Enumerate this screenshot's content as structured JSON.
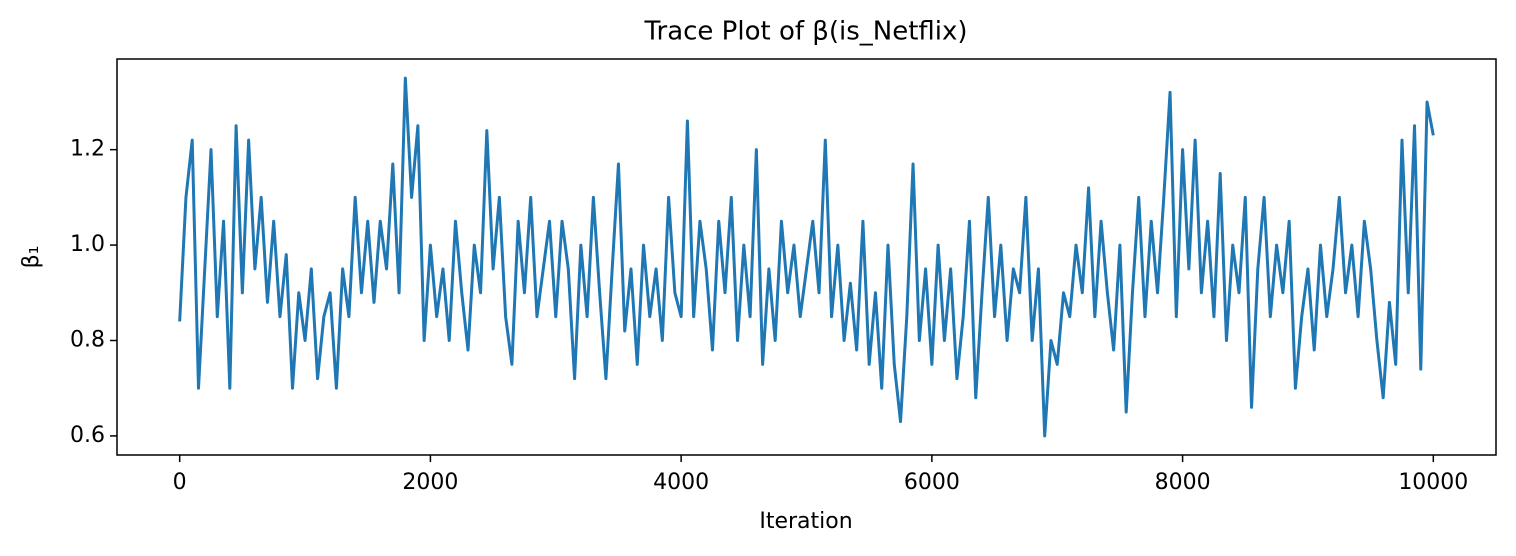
{
  "chart_data": {
    "type": "line",
    "title": "Trace Plot of β(is_Netflix)",
    "x_label": "Iteration",
    "y_label": "β₁",
    "xlim": [
      -500,
      10500
    ],
    "ylim": [
      0.56,
      1.39
    ],
    "xticks": [
      0,
      2000,
      4000,
      6000,
      8000,
      10000
    ],
    "yticks": [
      0.6,
      0.8,
      {
        "value": 1,
        "label": "1.0"
      },
      1.2
    ],
    "grid": false,
    "x": [
      0,
      50,
      100,
      150,
      200,
      250,
      300,
      350,
      400,
      450,
      500,
      550,
      600,
      650,
      700,
      750,
      800,
      850,
      900,
      950,
      1000,
      1050,
      1100,
      1150,
      1200,
      1250,
      1300,
      1350,
      1400,
      1450,
      1500,
      1550,
      1600,
      1650,
      1700,
      1750,
      1800,
      1850,
      1900,
      1950,
      2000,
      2050,
      2100,
      2150,
      2200,
      2250,
      2300,
      2350,
      2400,
      2450,
      2500,
      2550,
      2600,
      2650,
      2700,
      2750,
      2800,
      2850,
      2900,
      2950,
      3000,
      3050,
      3100,
      3150,
      3200,
      3250,
      3300,
      3350,
      3400,
      3450,
      3500,
      3550,
      3600,
      3650,
      3700,
      3750,
      3800,
      3850,
      3900,
      3950,
      4000,
      4050,
      4100,
      4150,
      4200,
      4250,
      4300,
      4350,
      4400,
      4450,
      4500,
      4550,
      4600,
      4650,
      4700,
      4750,
      4800,
      4850,
      4900,
      4950,
      5000,
      5050,
      5100,
      5150,
      5200,
      5250,
      5300,
      5350,
      5400,
      5450,
      5500,
      5550,
      5600,
      5650,
      5700,
      5750,
      5800,
      5850,
      5900,
      5950,
      6000,
      6050,
      6100,
      6150,
      6200,
      6250,
      6300,
      6350,
      6400,
      6450,
      6500,
      6550,
      6600,
      6650,
      6700,
      6750,
      6800,
      6850,
      6900,
      6950,
      7000,
      7050,
      7100,
      7150,
      7200,
      7250,
      7300,
      7350,
      7400,
      7450,
      7500,
      7550,
      7600,
      7650,
      7700,
      7750,
      7800,
      7850,
      7900,
      7950,
      8000,
      8050,
      8100,
      8150,
      8200,
      8250,
      8300,
      8350,
      8400,
      8450,
      8500,
      8550,
      8600,
      8650,
      8700,
      8750,
      8800,
      8850,
      8900,
      8950,
      9000,
      9050,
      9100,
      9150,
      9200,
      9250,
      9300,
      9350,
      9400,
      9450,
      9500,
      9550,
      9600,
      9650,
      9700,
      9750,
      9800,
      9850,
      9900,
      9950,
      10000
    ],
    "series": [
      {
        "color": "#1f77b4",
        "values": [
          0.84,
          1.1,
          1.22,
          0.7,
          0.95,
          1.2,
          0.85,
          1.05,
          0.7,
          1.25,
          0.9,
          1.22,
          0.95,
          1.1,
          0.88,
          1.05,
          0.85,
          0.98,
          0.7,
          0.9,
          0.8,
          0.95,
          0.72,
          0.85,
          0.9,
          0.7,
          0.95,
          0.85,
          1.1,
          0.9,
          1.05,
          0.88,
          1.05,
          0.95,
          1.17,
          0.9,
          1.35,
          1.1,
          1.25,
          0.8,
          1.0,
          0.85,
          0.95,
          0.8,
          1.05,
          0.9,
          0.78,
          1.0,
          0.9,
          1.24,
          0.95,
          1.1,
          0.85,
          0.75,
          1.05,
          0.9,
          1.1,
          0.85,
          0.95,
          1.05,
          0.85,
          1.05,
          0.95,
          0.72,
          1.0,
          0.85,
          1.1,
          0.9,
          0.72,
          0.95,
          1.17,
          0.82,
          0.95,
          0.75,
          1.0,
          0.85,
          0.95,
          0.8,
          1.1,
          0.9,
          0.85,
          1.26,
          0.85,
          1.05,
          0.95,
          0.78,
          1.05,
          0.9,
          1.1,
          0.8,
          1.0,
          0.85,
          1.2,
          0.75,
          0.95,
          0.8,
          1.05,
          0.9,
          1.0,
          0.85,
          0.95,
          1.05,
          0.9,
          1.22,
          0.85,
          1.0,
          0.8,
          0.92,
          0.78,
          1.05,
          0.75,
          0.9,
          0.7,
          1.0,
          0.75,
          0.63,
          0.85,
          1.17,
          0.8,
          0.95,
          0.75,
          1.0,
          0.8,
          0.95,
          0.72,
          0.85,
          1.05,
          0.68,
          0.9,
          1.1,
          0.85,
          1.0,
          0.8,
          0.95,
          0.9,
          1.1,
          0.8,
          0.95,
          0.6,
          0.8,
          0.75,
          0.9,
          0.85,
          1.0,
          0.9,
          1.12,
          0.85,
          1.05,
          0.9,
          0.78,
          1.0,
          0.65,
          0.9,
          1.1,
          0.85,
          1.05,
          0.9,
          1.1,
          1.32,
          0.85,
          1.2,
          0.95,
          1.22,
          0.9,
          1.05,
          0.85,
          1.15,
          0.8,
          1.0,
          0.9,
          1.1,
          0.66,
          0.95,
          1.1,
          0.85,
          1.0,
          0.9,
          1.05,
          0.7,
          0.85,
          0.95,
          0.78,
          1.0,
          0.85,
          0.95,
          1.1,
          0.9,
          1.0,
          0.85,
          1.05,
          0.95,
          0.8,
          0.68,
          0.88,
          0.75,
          1.22,
          0.9,
          1.25,
          0.74,
          1.3,
          1.23
        ]
      }
    ]
  }
}
